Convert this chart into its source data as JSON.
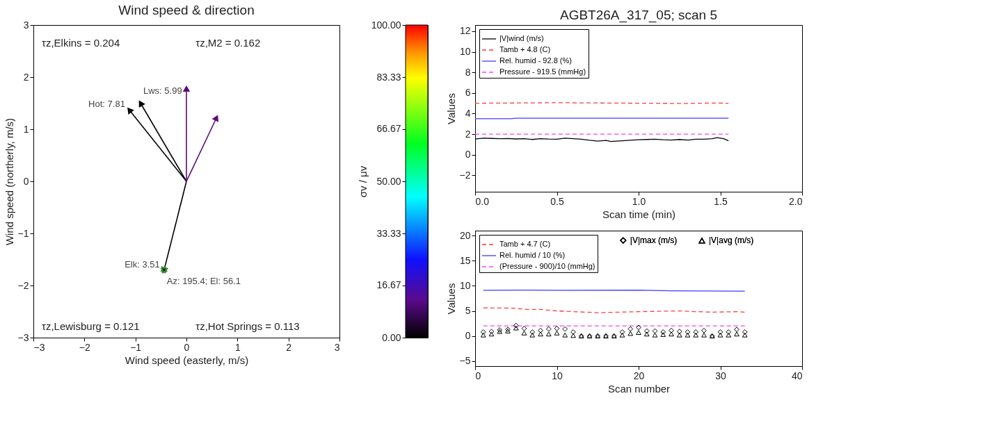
{
  "chart_data": [
    {
      "type": "line",
      "title": "Wind speed & direction",
      "xlabel": "Wind speed (easterly, m/s)",
      "ylabel": "Wind speed (northerly, m/s)",
      "xlim": [
        -3,
        3
      ],
      "ylim": [
        -3,
        3
      ],
      "xticks": [
        -3,
        -2,
        -1,
        0,
        1,
        2,
        3
      ],
      "yticks": [
        -3,
        -2,
        -1,
        0,
        1,
        2,
        3
      ],
      "clabel": "σv / μv",
      "clim": [
        0,
        100
      ],
      "cticks": [
        {
          "value": 0,
          "label": "0.00"
        },
        16.67,
        33.33,
        {
          "value": 50,
          "label": "50.00"
        },
        66.67,
        83.33,
        {
          "value": 100,
          "label": "100.00"
        }
      ],
      "series": [
        {
          "type": "line",
          "color": "#000000",
          "x": [
            0,
            -1.12
          ],
          "values": [
            0,
            1.37
          ]
        },
        {
          "type": "line",
          "color": "#000000",
          "x": [
            0,
            -0.9
          ],
          "values": [
            0,
            1.5
          ]
        },
        {
          "type": "line",
          "color": "#5c0a78",
          "x": [
            0,
            0
          ],
          "values": [
            0,
            1.78
          ]
        },
        {
          "type": "line",
          "color": "#5c0a78",
          "x": [
            0,
            0.59
          ],
          "values": [
            0,
            1.22
          ]
        },
        {
          "type": "line",
          "color": "#000000",
          "x": [
            0,
            -0.44
          ],
          "values": [
            0,
            -1.71
          ]
        },
        {
          "type": "scatter",
          "marker": "cross",
          "color": "#3c9c3c",
          "x": [
            -0.44
          ],
          "values": [
            -1.7
          ]
        }
      ],
      "annotations": [
        "τz,Elkins = 0.204",
        "τz,M2 = 0.162",
        "τz,Lewisburg = 0.121",
        "τz,Hot Springs = 0.113",
        {
          "text": "Hot: 7.81",
          "x": -1.12,
          "y": 1.37
        },
        {
          "text": "Lws: 5.99",
          "x": -0.9,
          "y": 1.5
        },
        {
          "text": "Elk: 3.51",
          "x": -0.44,
          "y": -1.71
        },
        {
          "text": "Az: 195.4; El: 56.1",
          "x": -0.44,
          "y": -1.7
        }
      ]
    },
    {
      "type": "line",
      "title": "AGBT26A_317_05; scan 5",
      "xlabel": "Scan time (min)",
      "ylabel": "Values",
      "xlim": [
        0,
        2
      ],
      "ylim": [
        -3.6,
        12.6
      ],
      "xticks": [
        {
          "value": 0,
          "label": "0.0"
        },
        0.5,
        {
          "value": 1,
          "label": "1.0"
        },
        1.5,
        {
          "value": 2,
          "label": "2.0"
        }
      ],
      "yticks": [
        -2,
        0,
        2,
        4,
        6,
        8,
        10,
        12
      ],
      "legend": "top left",
      "series": [
        {
          "name": "|V|wind (m/s)",
          "color": "#000000",
          "line_style": "solid",
          "x": [
            0,
            0.05,
            0.1,
            0.15,
            0.2,
            0.25,
            0.3,
            0.35,
            0.4,
            0.45,
            0.5,
            0.55,
            0.6,
            0.65,
            0.7,
            0.75,
            0.8,
            0.83,
            0.9,
            0.95,
            1.0,
            1.05,
            1.1,
            1.15,
            1.2,
            1.25,
            1.3,
            1.35,
            1.4,
            1.45,
            1.48,
            1.52,
            1.55
          ],
          "values": [
            1.52,
            1.6,
            1.58,
            1.55,
            1.57,
            1.53,
            1.55,
            1.48,
            1.56,
            1.52,
            1.5,
            1.6,
            1.55,
            1.5,
            1.4,
            1.32,
            1.38,
            1.28,
            1.35,
            1.4,
            1.45,
            1.48,
            1.5,
            1.45,
            1.42,
            1.48,
            1.42,
            1.5,
            1.5,
            1.55,
            1.65,
            1.55,
            1.35
          ]
        },
        {
          "name": "Tamb + 4.8 (C)",
          "color": "#ff3c3c",
          "line_style": "dashed",
          "x": [
            0,
            0.5,
            1.0,
            1.3,
            1.45,
            1.55
          ],
          "values": [
            5.0,
            5.05,
            5.0,
            4.98,
            5.02,
            5.0
          ]
        },
        {
          "name": "Rel. humid - 92.8 (%)",
          "color": "#3c3cff",
          "line_style": "solid",
          "x": [
            0,
            0.22,
            0.25,
            1.55
          ],
          "values": [
            3.5,
            3.5,
            3.55,
            3.55
          ]
        },
        {
          "name": "Pressure - 919.5 (mmHg)",
          "color": "#ff3cff",
          "line_style": "dashed",
          "x": [
            0,
            0.8,
            1.55
          ],
          "values": [
            2.0,
            2.0,
            2.0
          ]
        }
      ]
    },
    {
      "type": "line",
      "xlabel": "Scan number",
      "ylabel": "Values",
      "xlim": [
        0,
        40
      ],
      "ylim": [
        -6,
        21
      ],
      "xticks": [
        0,
        10,
        20,
        30,
        40
      ],
      "yticks": [
        -5,
        0,
        5,
        10,
        15,
        20
      ],
      "legend": "top left",
      "series": [
        {
          "name": "Tamb + 4.7 (C)",
          "color": "#ff3c3c",
          "line_style": "dashed",
          "x": [
            1,
            5,
            6,
            8,
            10,
            15,
            20,
            25,
            28,
            29,
            32,
            33
          ],
          "values": [
            5.6,
            5.55,
            5.3,
            5.3,
            5.0,
            4.65,
            4.85,
            5.0,
            4.8,
            4.75,
            4.85,
            4.75
          ]
        },
        {
          "name": "Rel. humid / 10 (%)",
          "color": "#3c3cff",
          "line_style": "solid",
          "x": [
            1,
            5,
            10,
            20,
            24,
            33
          ],
          "values": [
            9.1,
            9.15,
            9.1,
            9.15,
            9.0,
            8.95
          ]
        },
        {
          "name": "(Pressure - 900)/10 (mmHg)",
          "color": "#ff3cff",
          "line_style": "dashed",
          "x": [
            1,
            17,
            33
          ],
          "values": [
            2.0,
            2.0,
            2.0
          ]
        },
        {
          "type": "scatter",
          "marker": "diamond",
          "name": "|V|max (m/s)",
          "color": "#000000",
          "x": [
            1,
            2,
            3,
            4,
            5,
            6,
            7,
            8,
            9,
            10,
            11,
            12,
            13,
            14,
            15,
            16,
            17,
            18,
            19,
            20,
            21,
            22,
            23,
            24,
            25,
            26,
            27,
            28,
            29,
            30,
            31,
            32,
            33
          ],
          "values": [
            0.8,
            0.9,
            1.2,
            1.3,
            2.1,
            1.5,
            0.8,
            1.1,
            1.4,
            1.5,
            1.4,
            0.8,
            0,
            0,
            0,
            0,
            0,
            0.8,
            1.4,
            1.7,
            1.0,
            1.0,
            0.8,
            1.1,
            0.9,
            0.8,
            0.8,
            1.1,
            0,
            0.8,
            0.8,
            1.3,
            0.8
          ]
        },
        {
          "type": "scatter",
          "marker": "triangle",
          "name": "|V|avg (m/s)",
          "color": "#000000",
          "x": [
            1,
            2,
            3,
            4,
            5,
            6,
            7,
            8,
            9,
            10,
            11,
            12,
            13,
            14,
            15,
            16,
            17,
            18,
            19,
            20,
            21,
            22,
            23,
            24,
            25,
            26,
            27,
            28,
            29,
            30,
            31,
            32,
            33
          ],
          "values": [
            0.2,
            0.4,
            0.9,
            1.0,
            1.6,
            0.6,
            0.2,
            0.4,
            0.4,
            0.6,
            0.2,
            0.1,
            0,
            0,
            0,
            0,
            0,
            0.2,
            0.5,
            0.7,
            0.4,
            0.2,
            0.3,
            0.4,
            0.2,
            0.2,
            0.2,
            0.2,
            0,
            0.2,
            0.2,
            0.4,
            0.2
          ]
        }
      ]
    }
  ]
}
